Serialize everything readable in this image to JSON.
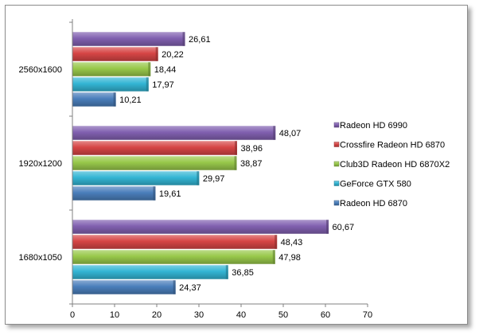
{
  "chart_data": {
    "type": "bar",
    "orientation": "horizontal",
    "title": "",
    "xlabel": "",
    "ylabel": "",
    "xlim": [
      0,
      70
    ],
    "x_ticks": [
      0,
      10,
      20,
      30,
      40,
      50,
      60,
      70
    ],
    "grid": false,
    "legend_position": "right",
    "categories": [
      "1680x1050",
      "1920x1200",
      "2560x1600"
    ],
    "series": [
      {
        "name": "Radeon HD 6870",
        "color": "#4a7ebb",
        "values": [
          "24,37",
          "19,61",
          "10,21"
        ]
      },
      {
        "name": "GeForce GTX 580",
        "color": "#33b5d4",
        "values": [
          "36,85",
          "29,97",
          "17,97"
        ]
      },
      {
        "name": "Club3D Radeon HD 6870X2",
        "color": "#98c84a",
        "values": [
          "47,98",
          "38,87",
          "18,44"
        ]
      },
      {
        "name": "Crossfire Radeon HD 6870",
        "color": "#d64545",
        "values": [
          "48,43",
          "38,96",
          "20,22"
        ]
      },
      {
        "name": "Radeon HD 6990",
        "color": "#8160b0",
        "values": [
          "60,67",
          "48,07",
          "26,61"
        ]
      }
    ],
    "legend_order": [
      "Radeon HD 6990",
      "Crossfire Radeon HD 6870",
      "Club3D Radeon HD 6870X2",
      "GeForce GTX 580",
      "Radeon HD 6870"
    ]
  }
}
